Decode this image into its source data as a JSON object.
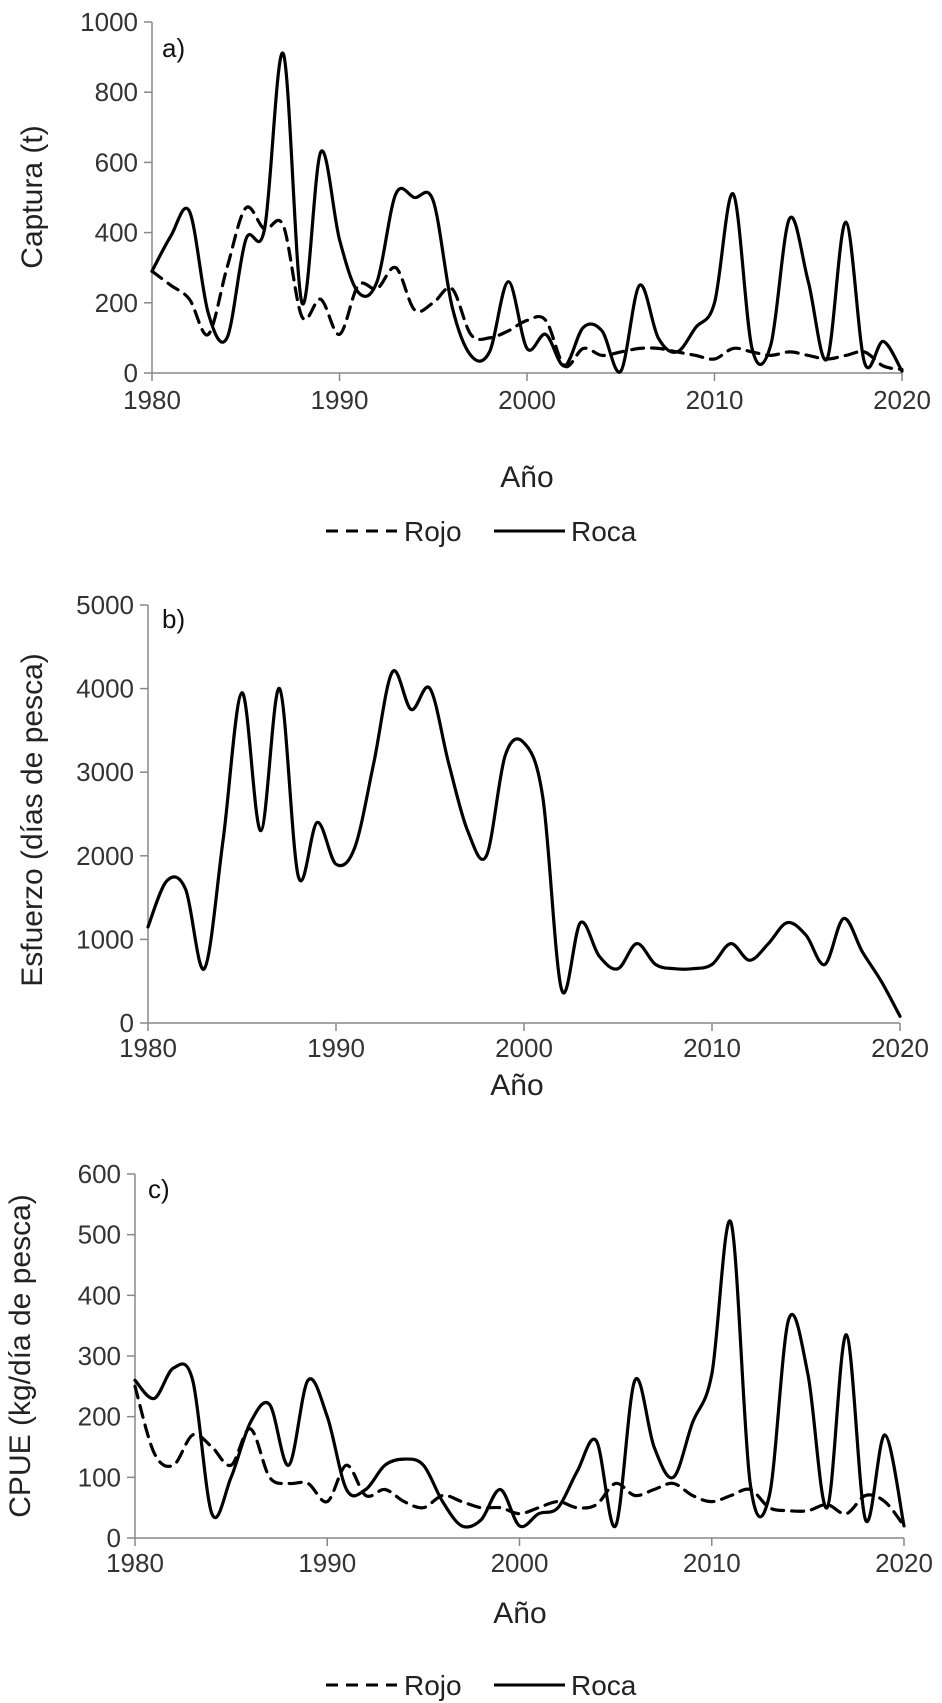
{
  "chart_data": [
    {
      "type": "line",
      "panel_label": "a)",
      "xlabel": "Año",
      "ylabel": "Captura (t)",
      "xlim": [
        1980,
        2020
      ],
      "ylim": [
        0,
        1000
      ],
      "xticks": [
        1980,
        1990,
        2000,
        2010,
        2020
      ],
      "yticks": [
        0,
        200,
        400,
        600,
        800,
        1000
      ],
      "grid": false,
      "legend": "bottom",
      "series": [
        {
          "name": "Rojo",
          "style": "dashed",
          "color": "#000000",
          "x": [
            1980,
            1981,
            1982,
            1983,
            1984,
            1985,
            1986,
            1987,
            1988,
            1989,
            1990,
            1991,
            1992,
            1993,
            1994,
            1995,
            1996,
            1997,
            1998,
            1999,
            2000,
            2001,
            2002,
            2003,
            2004,
            2005,
            2006,
            2007,
            2008,
            2009,
            2010,
            2011,
            2012,
            2013,
            2014,
            2015,
            2016,
            2017,
            2018,
            2019,
            2020
          ],
          "values": [
            290,
            250,
            210,
            110,
            300,
            470,
            410,
            420,
            160,
            210,
            110,
            250,
            240,
            300,
            180,
            200,
            240,
            110,
            100,
            120,
            150,
            150,
            20,
            70,
            50,
            60,
            70,
            70,
            60,
            50,
            40,
            70,
            60,
            50,
            60,
            50,
            40,
            50,
            60,
            20,
            10
          ]
        },
        {
          "name": "Roca",
          "style": "solid",
          "color": "#000000",
          "x": [
            1980,
            1981,
            1982,
            1983,
            1984,
            1985,
            1986,
            1987,
            1988,
            1989,
            1990,
            1991,
            1992,
            1993,
            1994,
            1995,
            1996,
            1997,
            1998,
            1999,
            2000,
            2001,
            2002,
            2003,
            2004,
            2005,
            2006,
            2007,
            2008,
            2009,
            2010,
            2011,
            2012,
            2013,
            2014,
            2015,
            2016,
            2017,
            2018,
            2019,
            2020
          ],
          "values": [
            290,
            390,
            460,
            170,
            100,
            380,
            410,
            910,
            200,
            630,
            380,
            230,
            260,
            510,
            500,
            490,
            190,
            50,
            60,
            260,
            70,
            110,
            20,
            130,
            120,
            5,
            250,
            100,
            60,
            130,
            200,
            510,
            70,
            80,
            440,
            260,
            40,
            430,
            30,
            90,
            5
          ]
        }
      ]
    },
    {
      "type": "line",
      "panel_label": "b)",
      "xlabel": "Año",
      "ylabel": "Esfuerzo (días de pesca)",
      "xlim": [
        1980,
        2020
      ],
      "ylim": [
        0,
        5000
      ],
      "xticks": [
        1980,
        1990,
        2000,
        2010,
        2020
      ],
      "yticks": [
        0,
        1000,
        2000,
        3000,
        4000,
        5000
      ],
      "grid": false,
      "series": [
        {
          "style": "solid",
          "color": "#000000",
          "x": [
            1980,
            1981,
            1982,
            1983,
            1984,
            1985,
            1986,
            1987,
            1988,
            1989,
            1990,
            1991,
            1992,
            1993,
            1994,
            1995,
            1996,
            1997,
            1998,
            1999,
            2000,
            2001,
            2002,
            2003,
            2004,
            2005,
            2006,
            2007,
            2008,
            2009,
            2010,
            2011,
            2012,
            2013,
            2014,
            2015,
            2016,
            2017,
            2018,
            2019,
            2020
          ],
          "values": [
            1150,
            1700,
            1600,
            650,
            2200,
            3950,
            2300,
            4000,
            1750,
            2400,
            1900,
            2100,
            3100,
            4200,
            3750,
            4000,
            3100,
            2300,
            2000,
            3200,
            3350,
            2700,
            400,
            1200,
            800,
            650,
            950,
            700,
            650,
            650,
            700,
            950,
            750,
            950,
            1200,
            1050,
            700,
            1250,
            850,
            500,
            80
          ]
        }
      ]
    },
    {
      "type": "line",
      "panel_label": "c)",
      "xlabel": "Año",
      "ylabel": "CPUE (kg/día de pesca)",
      "xlim": [
        1980,
        2020
      ],
      "ylim": [
        0,
        600
      ],
      "xticks": [
        1980,
        1990,
        2000,
        2010,
        2020
      ],
      "yticks": [
        0,
        100,
        200,
        300,
        400,
        500,
        600
      ],
      "grid": false,
      "legend": "bottom",
      "series": [
        {
          "name": "Rojo",
          "style": "dashed",
          "color": "#000000",
          "x": [
            1980,
            1981,
            1982,
            1983,
            1984,
            1985,
            1986,
            1987,
            1988,
            1989,
            1990,
            1991,
            1992,
            1993,
            1994,
            1995,
            1996,
            1997,
            1998,
            1999,
            2000,
            2001,
            2002,
            2003,
            2004,
            2005,
            2006,
            2007,
            2008,
            2009,
            2010,
            2011,
            2012,
            2013,
            2014,
            2015,
            2016,
            2017,
            2018,
            2019,
            2020
          ],
          "values": [
            250,
            140,
            120,
            170,
            150,
            120,
            180,
            100,
            90,
            90,
            60,
            120,
            70,
            80,
            60,
            50,
            70,
            60,
            50,
            50,
            40,
            50,
            60,
            50,
            55,
            90,
            70,
            80,
            90,
            70,
            60,
            70,
            80,
            50,
            45,
            45,
            55,
            40,
            70,
            60,
            20
          ]
        },
        {
          "name": "Roca",
          "style": "solid",
          "color": "#000000",
          "x": [
            1980,
            1981,
            1982,
            1983,
            1984,
            1985,
            1986,
            1987,
            1988,
            1989,
            1990,
            1991,
            1992,
            1993,
            1994,
            1995,
            1996,
            1997,
            1998,
            1999,
            2000,
            2001,
            2002,
            2003,
            2004,
            2005,
            2006,
            2007,
            2008,
            2009,
            2010,
            2011,
            2012,
            2013,
            2014,
            2015,
            2016,
            2017,
            2018,
            2019,
            2020
          ],
          "values": [
            260,
            230,
            280,
            260,
            40,
            100,
            190,
            220,
            120,
            260,
            200,
            80,
            80,
            120,
            130,
            120,
            60,
            20,
            30,
            80,
            20,
            40,
            50,
            110,
            160,
            20,
            260,
            150,
            100,
            190,
            270,
            520,
            90,
            70,
            360,
            270,
            50,
            335,
            30,
            170,
            20
          ]
        }
      ]
    }
  ]
}
